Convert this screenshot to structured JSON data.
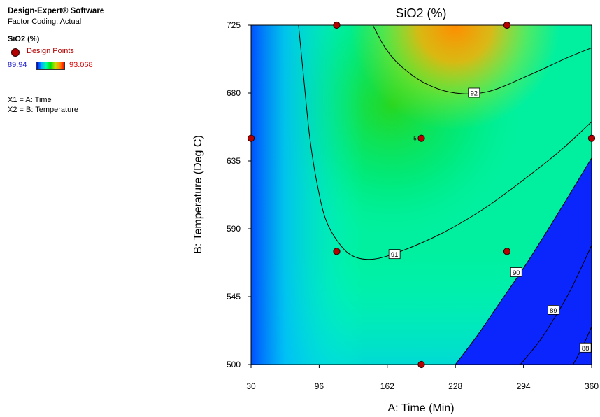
{
  "sidebar": {
    "software": "Design-Expert® Software",
    "coding": "Factor Coding: Actual",
    "response": "SiO2 (%)",
    "legend_label": "Design Points",
    "scale_min": "89.94",
    "scale_max": "93.068",
    "x1": "X1 = A: Time",
    "x2": "X2 = B: Temperature"
  },
  "colors": {
    "design_point": "#b30000",
    "scale_min_text": "#2020d0",
    "scale_max_text": "#e00000"
  },
  "chart_data": {
    "type": "contour",
    "title": "SiO2 (%)",
    "xlabel": "A: Time (Min)",
    "ylabel": "B: Temperature (Deg C)",
    "xlim": [
      30,
      360
    ],
    "ylim": [
      500,
      725
    ],
    "xticks": [
      "30",
      "96",
      "162",
      "228",
      "294",
      "360"
    ],
    "yticks": [
      "500",
      "545",
      "590",
      "635",
      "680",
      "725"
    ],
    "color_range": [
      89.94,
      93.068
    ],
    "contour_levels": [
      {
        "level": "92",
        "points": [
          [
            148,
            725
          ],
          [
            160,
            710
          ],
          [
            175,
            698
          ],
          [
            200,
            686
          ],
          [
            228,
            680
          ],
          [
            260,
            681
          ],
          [
            300,
            692
          ],
          [
            335,
            703
          ],
          [
            360,
            710
          ]
        ]
      },
      {
        "level": "91",
        "points": [
          [
            76,
            725
          ],
          [
            81,
            690
          ],
          [
            87,
            650
          ],
          [
            94,
            620
          ],
          [
            103,
            595
          ],
          [
            118,
            578
          ],
          [
            132,
            571
          ],
          [
            150,
            570
          ],
          [
            175,
            575
          ],
          [
            215,
            587
          ],
          [
            255,
            603
          ],
          [
            295,
            623
          ],
          [
            330,
            642
          ],
          [
            360,
            661
          ]
        ]
      },
      {
        "level": "90",
        "points": [
          [
            228,
            500
          ],
          [
            250,
            520
          ],
          [
            270,
            540
          ],
          [
            295,
            565
          ],
          [
            320,
            592
          ],
          [
            345,
            620
          ],
          [
            360,
            637
          ]
        ]
      },
      {
        "level": "89",
        "points": [
          [
            291,
            500
          ],
          [
            310,
            516
          ],
          [
            325,
            532
          ],
          [
            340,
            550
          ],
          [
            360,
            579
          ]
        ]
      },
      {
        "level": "88",
        "points": [
          [
            342,
            500
          ],
          [
            350,
            510
          ],
          [
            360,
            525
          ]
        ]
      }
    ],
    "contour_labels": [
      {
        "text": "92",
        "x": 246,
        "y": 680
      },
      {
        "text": "91",
        "x": 169,
        "y": 573
      },
      {
        "text": "90",
        "x": 287,
        "y": 561
      },
      {
        "text": "89",
        "x": 323,
        "y": 536
      },
      {
        "text": "88",
        "x": 354,
        "y": 511
      }
    ],
    "design_points": [
      {
        "x": 30,
        "y": 650,
        "label": ""
      },
      {
        "x": 113,
        "y": 725,
        "label": ""
      },
      {
        "x": 278,
        "y": 725,
        "label": ""
      },
      {
        "x": 195,
        "y": 650,
        "label": "5"
      },
      {
        "x": 360,
        "y": 650,
        "label": ""
      },
      {
        "x": 113,
        "y": 575,
        "label": ""
      },
      {
        "x": 278,
        "y": 575,
        "label": ""
      },
      {
        "x": 195,
        "y": 500,
        "label": ""
      }
    ]
  }
}
